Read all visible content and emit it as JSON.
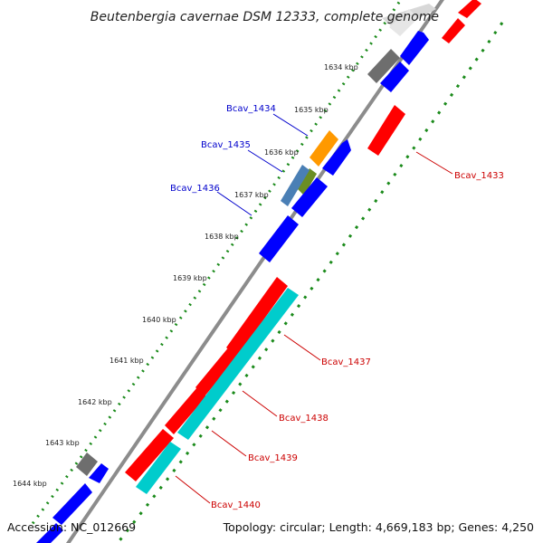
{
  "title": "Beutenbergia cavernae DSM 12333, complete genome",
  "footer": {
    "accession": "Accession: NC_012669",
    "summary": "Topology: circular; Length: 4,669,183 bp; Genes: 4,250"
  },
  "colors": {
    "background": "#ffffff",
    "backbone": "#8c8c8c",
    "tick_marks": "#1a8a1a",
    "forward_label": "#0000cc",
    "reverse_label": "#cc0000",
    "gene_blue": "#0000ff",
    "gene_red": "#ff0000",
    "gene_cyan": "#00cccc",
    "gene_gray": "#6e6e6e",
    "gene_orange": "#ff9900",
    "gene_olive": "#6b8e23",
    "gene_steel": "#4a7fb5"
  },
  "scale_ticks": [
    "1634 kbp",
    "1635 kbp",
    "1636 kbp",
    "1637 kbp",
    "1638 kbp",
    "1639 kbp",
    "1640 kbp",
    "1641 kbp",
    "1642 kbp",
    "1643 kbp",
    "1644 kbp"
  ],
  "gene_labels": {
    "forward": [
      "Bcav_1434",
      "Bcav_1435",
      "Bcav_1436"
    ],
    "reverse": [
      "Bcav_1433",
      "Bcav_1437",
      "Bcav_1438",
      "Bcav_1439",
      "Bcav_1440"
    ]
  }
}
